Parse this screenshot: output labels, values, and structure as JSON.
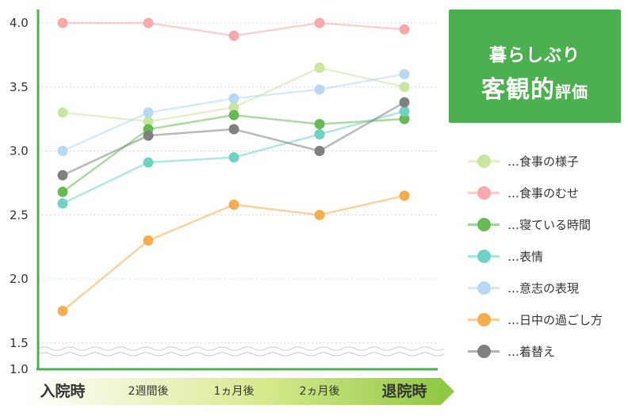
{
  "title": {
    "line1": "暮らしぶり",
    "line2_main": "客観的",
    "line2_sub": "評価"
  },
  "chart_data": {
    "type": "line",
    "categories": [
      "入院時",
      "2週間後",
      "1ヵ月後",
      "2ヵ月後",
      "退院時"
    ],
    "y_ticks": [
      "1.0",
      "1.5",
      "2.0",
      "2.5",
      "3.0",
      "3.5",
      "4.0"
    ],
    "ylim": [
      1.0,
      4.0
    ],
    "axis_break": true,
    "grid": "horizontal-dotted",
    "legend_position": "right",
    "series": [
      {
        "name": "…食事の様子",
        "color": "#c8e6a0",
        "values": [
          3.3,
          3.23,
          3.34,
          3.65,
          3.5
        ]
      },
      {
        "name": "…食事のむせ",
        "color": "#f8aaaa",
        "values": [
          4.0,
          4.0,
          3.9,
          4.0,
          3.95
        ]
      },
      {
        "name": "…寝ている時間",
        "color": "#66bb55",
        "values": [
          2.68,
          3.17,
          3.28,
          3.21,
          3.25
        ]
      },
      {
        "name": "…表情",
        "color": "#6fd3c3",
        "values": [
          2.59,
          2.91,
          2.95,
          3.13,
          3.31
        ]
      },
      {
        "name": "…意志の表現",
        "color": "#b8d8f2",
        "values": [
          3.0,
          3.3,
          3.41,
          3.48,
          3.6
        ]
      },
      {
        "name": "…日中の過ごし方",
        "color": "#f5ad4d",
        "values": [
          1.75,
          2.3,
          2.58,
          2.5,
          2.65
        ]
      },
      {
        "name": "…着替え",
        "color": "#808080",
        "values": [
          2.81,
          3.12,
          3.17,
          3.0,
          3.38
        ]
      }
    ]
  }
}
